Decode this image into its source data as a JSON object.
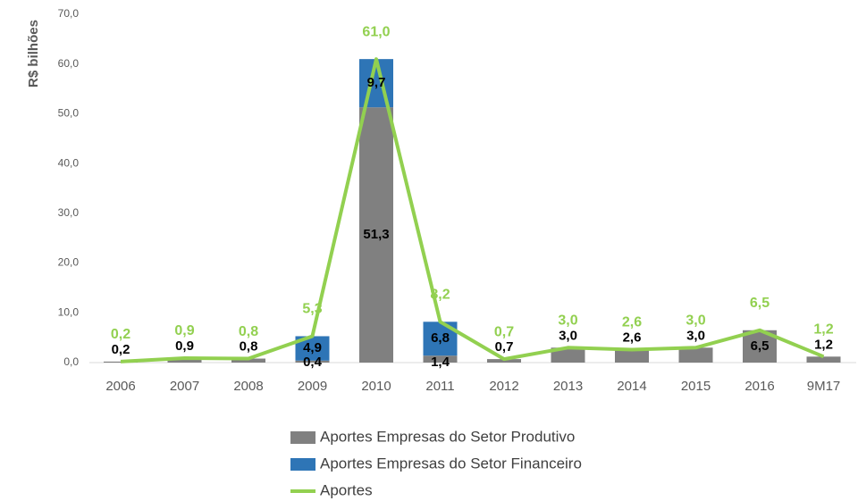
{
  "chart_data": {
    "type": "bar-line",
    "y_label": "R$ bilhões",
    "categories": [
      "2006",
      "2007",
      "2008",
      "2009",
      "2010",
      "2011",
      "2012",
      "2013",
      "2014",
      "2015",
      "2016",
      "9M17"
    ],
    "series": [
      {
        "name": "Aportes  Empresas do Setor Produtivo",
        "type": "bar",
        "color": "#808080",
        "values": [
          0.2,
          0.9,
          0.8,
          0.4,
          51.3,
          1.4,
          0.7,
          3.0,
          2.6,
          3.0,
          6.5,
          1.2
        ],
        "value_labels": [
          "0,2",
          "0,9",
          "0,8",
          "0,4",
          "51,3",
          "1,4",
          "0,7",
          "3,0",
          "2,6",
          "3,0",
          "6,5",
          "1,2"
        ]
      },
      {
        "name": "Aportes Empresas do Setor Financeiro",
        "type": "bar",
        "color": "#2e75b6",
        "values": [
          null,
          null,
          null,
          4.9,
          9.7,
          6.8,
          null,
          null,
          null,
          null,
          null,
          null
        ],
        "value_labels": [
          null,
          null,
          null,
          "4,9",
          "9,7",
          "6,8",
          null,
          null,
          null,
          null,
          null,
          null
        ]
      },
      {
        "name": "Aportes",
        "type": "line",
        "color": "#92d050",
        "values": [
          0.2,
          0.9,
          0.8,
          5.3,
          61.0,
          8.2,
          0.7,
          3.0,
          2.6,
          3.0,
          6.5,
          1.2
        ],
        "value_labels": [
          "0,2",
          "0,9",
          "0,8",
          "5,3",
          "61,0",
          "8,2",
          "0,7",
          "3,0",
          "2,6",
          "3,0",
          "6,5",
          "1,2"
        ]
      }
    ],
    "ylim": [
      0,
      70
    ],
    "yticks": [
      {
        "value": 0,
        "label": "0,0"
      },
      {
        "value": 10,
        "label": "10,0"
      },
      {
        "value": 20,
        "label": "20,0"
      },
      {
        "value": 30,
        "label": "30,0"
      },
      {
        "value": 40,
        "label": "40,0"
      },
      {
        "value": 50,
        "label": "50,0"
      },
      {
        "value": 60,
        "label": "60,0"
      },
      {
        "value": 70,
        "label": "70,0"
      }
    ],
    "legend": "bottom"
  }
}
